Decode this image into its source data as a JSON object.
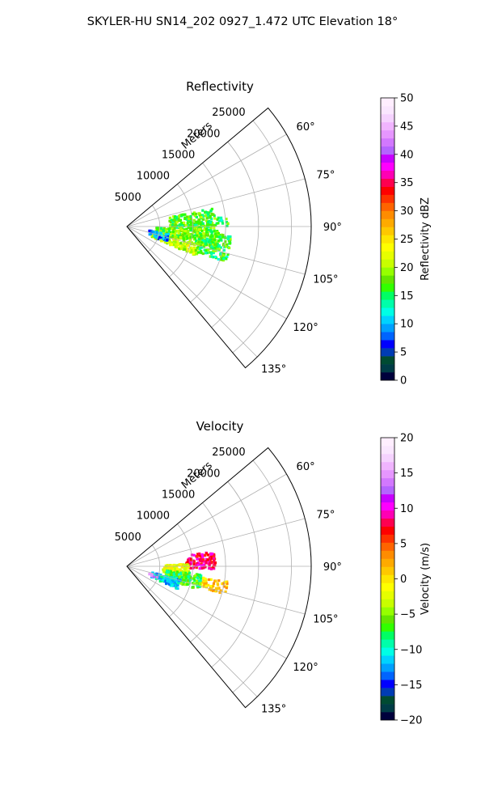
{
  "figure": {
    "suptitle": "SKYLER-HU  SN14_202  0927_1.472 UTC Elevation 18°"
  },
  "chart_data": [
    {
      "type": "polar-sector",
      "title": "Reflectivity",
      "radial_label": "Meters",
      "radial_ticks": [
        5000,
        10000,
        15000,
        20000,
        25000
      ],
      "radial_tick_labels": [
        "5000",
        "10000",
        "15000",
        "20000",
        "25000"
      ],
      "rlim": [
        0,
        28000
      ],
      "azimuth_range_deg": [
        50,
        140
      ],
      "azimuth_ticks": [
        60,
        75,
        90,
        105,
        120,
        135
      ],
      "azimuth_tick_labels": [
        "60°",
        "75°",
        "90°",
        "105°",
        "120°",
        "135°"
      ],
      "grid": true,
      "colorbar": {
        "label": "Reflectivity dBZ",
        "range": [
          0,
          50
        ],
        "ticks": [
          0,
          5,
          10,
          15,
          20,
          25,
          30,
          35,
          40,
          45,
          50
        ],
        "tick_labels": [
          "0",
          "5",
          "10",
          "15",
          "20",
          "25",
          "30",
          "35",
          "40",
          "45",
          "50"
        ],
        "colors": [
          "#00003c",
          "#003c46",
          "#004b32",
          "#003cb4",
          "#0000ff",
          "#0064ff",
          "#00a0ff",
          "#00d2ff",
          "#00ffe6",
          "#00ffaa",
          "#00ff64",
          "#32ff00",
          "#64e600",
          "#96ff00",
          "#c8ff00",
          "#e6ff00",
          "#ffff00",
          "#ffe600",
          "#ffc800",
          "#ffaa00",
          "#ff8c00",
          "#ff6400",
          "#ff3200",
          "#ff0000",
          "#ff0050",
          "#ff00b4",
          "#ff00ff",
          "#c800ff",
          "#b464ff",
          "#d278ff",
          "#e696ff",
          "#f0b4ff",
          "#f5d2ff",
          "#fae6ff",
          "#ffeeff"
        ]
      },
      "echo_regions": [
        {
          "az_min": 78,
          "az_max": 92,
          "r_min": 6500,
          "r_max": 13500,
          "value": 17,
          "density": 0.7
        },
        {
          "az_min": 92,
          "az_max": 104,
          "r_min": 4500,
          "r_max": 14500,
          "value": 18,
          "density": 0.75
        },
        {
          "az_min": 104,
          "az_max": 113,
          "r_min": 4000,
          "r_max": 11500,
          "value": 21,
          "density": 0.8
        },
        {
          "az_min": 100,
          "az_max": 112,
          "r_min": 3500,
          "r_max": 6500,
          "value": 9,
          "density": 0.4
        },
        {
          "az_min": 95,
          "az_max": 110,
          "r_min": 11000,
          "r_max": 16000,
          "value": 16,
          "density": 0.55
        },
        {
          "az_min": 84,
          "az_max": 90,
          "r_min": 12500,
          "r_max": 15500,
          "value": 16,
          "density": 0.3
        }
      ]
    },
    {
      "type": "polar-sector",
      "title": "Velocity",
      "radial_label": "Meters",
      "radial_ticks": [
        5000,
        10000,
        15000,
        20000,
        25000
      ],
      "radial_tick_labels": [
        "5000",
        "10000",
        "15000",
        "20000",
        "25000"
      ],
      "rlim": [
        0,
        28000
      ],
      "azimuth_range_deg": [
        50,
        140
      ],
      "azimuth_ticks": [
        60,
        75,
        90,
        105,
        120,
        135
      ],
      "azimuth_tick_labels": [
        "60°",
        "75°",
        "90°",
        "105°",
        "120°",
        "135°"
      ],
      "grid": true,
      "colorbar": {
        "label": "Velocity (m/s)",
        "range": [
          -20,
          20
        ],
        "ticks": [
          -20,
          -15,
          -10,
          -5,
          0,
          5,
          10,
          15,
          20
        ],
        "tick_labels": [
          "−20",
          "−15",
          "−10",
          "−5",
          "0",
          "5",
          "10",
          "15",
          "20"
        ],
        "colors": [
          "#00003c",
          "#003c46",
          "#004b32",
          "#003cb4",
          "#0000ff",
          "#0064ff",
          "#00a0ff",
          "#00d2ff",
          "#00ffe6",
          "#00ffaa",
          "#00ff64",
          "#32ff00",
          "#64e600",
          "#96ff00",
          "#c8ff00",
          "#e6ff00",
          "#ffff00",
          "#ffe600",
          "#ffc800",
          "#ffaa00",
          "#ff8c00",
          "#ff6400",
          "#ff3200",
          "#ff0000",
          "#ff0050",
          "#ff00b4",
          "#ff00ff",
          "#c800ff",
          "#b464ff",
          "#d278ff",
          "#e696ff",
          "#f0b4ff",
          "#f5d2ff",
          "#fae6ff",
          "#ffeeff"
        ]
      },
      "echo_regions": [
        {
          "az_min": 80,
          "az_max": 92,
          "r_min": 9000,
          "r_max": 13500,
          "value": 8,
          "density": 0.7
        },
        {
          "az_min": 88,
          "az_max": 100,
          "r_min": 5500,
          "r_max": 9500,
          "value": -2,
          "density": 0.75
        },
        {
          "az_min": 98,
          "az_max": 106,
          "r_min": 11000,
          "r_max": 15500,
          "value": 1,
          "density": 0.6
        },
        {
          "az_min": 96,
          "az_max": 108,
          "r_min": 6000,
          "r_max": 11500,
          "value": -7,
          "density": 0.8
        },
        {
          "az_min": 104,
          "az_max": 114,
          "r_min": 4000,
          "r_max": 8500,
          "value": -11,
          "density": 0.8
        },
        {
          "az_min": 107,
          "az_max": 112,
          "r_min": 3500,
          "r_max": 5000,
          "value": 15,
          "density": 0.35
        }
      ]
    }
  ]
}
